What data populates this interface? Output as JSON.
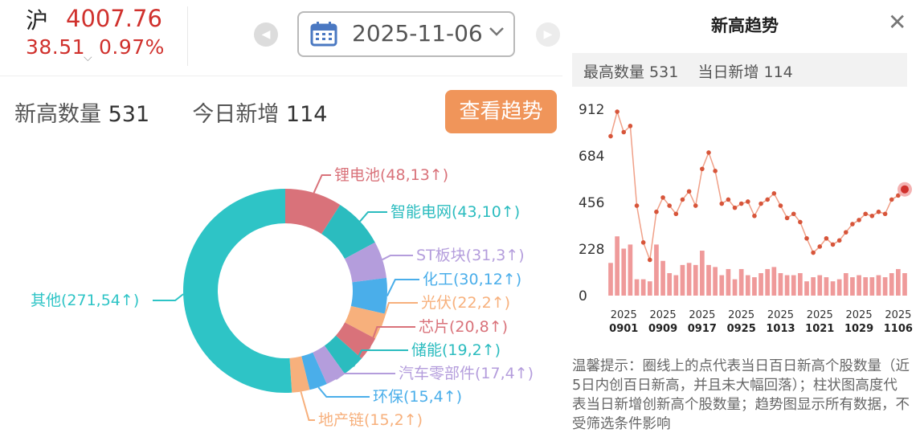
{
  "index": {
    "name": "沪",
    "value": "4007.76",
    "change": "38.51",
    "pct": "0.97%",
    "chevron": "⌵"
  },
  "date": {
    "value": "2025-11-06",
    "prev_icon": "◀",
    "next_icon": "▶"
  },
  "stats": {
    "label_high": "新高数量",
    "high": "531",
    "label_new": "今日新增",
    "new": "114"
  },
  "trend_button": "查看趋势",
  "colors": {
    "up": "#d0312d",
    "accent": "#f0955a",
    "line": "#d7553a",
    "bar": "#ef9a9a"
  },
  "chart_data": [
    {
      "type": "pie",
      "style": "donut",
      "slices": [
        {
          "label": "锂电池(48,13↑)",
          "value": 48,
          "color": "#d9727a"
        },
        {
          "label": "智能电网(43,10↑)",
          "value": 43,
          "color": "#2bbcbf"
        },
        {
          "label": "ST板块(31,3↑)",
          "value": 31,
          "color": "#b49ddc"
        },
        {
          "label": "化工(30,12↑)",
          "value": 30,
          "color": "#4aaeea"
        },
        {
          "label": "光伏(22,2↑)",
          "value": 22,
          "color": "#f7b07c"
        },
        {
          "label": "芯片(20,8↑)",
          "value": 20,
          "color": "#d9727a"
        },
        {
          "label": "储能(19,2↑)",
          "value": 19,
          "color": "#2bbcbf"
        },
        {
          "label": "汽车零部件(17,4↑)",
          "value": 17,
          "color": "#b49ddc"
        },
        {
          "label": "环保(15,4↑)",
          "value": 15,
          "color": "#4aaeea"
        },
        {
          "label": "地产链(15,2↑)",
          "value": 15,
          "color": "#f7b07c"
        },
        {
          "label": "其他(271,54↑)",
          "value": 271,
          "color": "#2ec4c6"
        }
      ]
    },
    {
      "type": "line",
      "title": "新高趋势",
      "y_ticks": [
        0,
        228,
        456,
        684,
        912
      ],
      "ylim": [
        0,
        912
      ],
      "x_ticks": [
        {
          "year": "2025",
          "md": "0901",
          "i": 2
        },
        {
          "year": "2025",
          "md": "0909",
          "i": 8
        },
        {
          "year": "2025",
          "md": "0917",
          "i": 14
        },
        {
          "year": "2025",
          "md": "0925",
          "i": 20
        },
        {
          "year": "2025",
          "md": "1013",
          "i": 26
        },
        {
          "year": "2025",
          "md": "1021",
          "i": 32
        },
        {
          "year": "2025",
          "md": "1029",
          "i": 38
        },
        {
          "year": "2025",
          "md": "1106",
          "i": 44
        }
      ],
      "series": [
        {
          "kind": "line",
          "values": [
            780,
            900,
            800,
            830,
            440,
            260,
            175,
            410,
            480,
            440,
            400,
            470,
            510,
            440,
            620,
            700,
            610,
            450,
            470,
            430,
            450,
            460,
            390,
            450,
            470,
            500,
            440,
            380,
            400,
            360,
            280,
            210,
            240,
            280,
            250,
            270,
            310,
            350,
            370,
            400,
            390,
            410,
            400,
            470,
            490,
            520
          ]
        },
        {
          "kind": "bar",
          "values": [
            160,
            290,
            230,
            250,
            80,
            80,
            70,
            250,
            170,
            110,
            100,
            150,
            160,
            150,
            220,
            150,
            140,
            100,
            130,
            80,
            130,
            100,
            90,
            110,
            130,
            140,
            110,
            100,
            100,
            110,
            70,
            90,
            100,
            90,
            70,
            80,
            110,
            90,
            100,
            90,
            90,
            100,
            90,
            110,
            130,
            110
          ]
        }
      ],
      "highlight_index": 45
    }
  ],
  "panel": {
    "title": "新高趋势",
    "close": "✕",
    "stats_text": "最高数量 531    当日新增 114",
    "note": "温馨提示：圈线上的点代表当日百日新高个股数量（近5日内创百日新高，并且未大幅回落）；柱状图高度代表当日新增创新高个股数量；趋势图显示所有数据，不受筛选条件影响"
  }
}
